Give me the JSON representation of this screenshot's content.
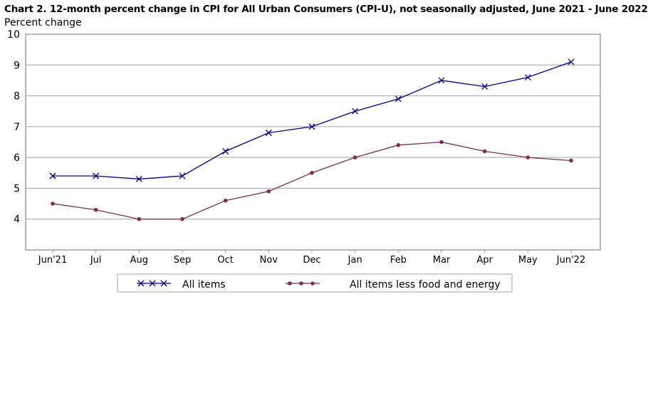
{
  "chart_data": {
    "type": "line",
    "title": "Chart 2. 12-month percent change in CPI for All Urban Consumers (CPI-U), not seasonally adjusted, June 2021 - June 2022",
    "ylabel": "Percent change",
    "xlabel": "",
    "categories": [
      "Jun'21",
      "Jul",
      "Aug",
      "Sep",
      "Oct",
      "Nov",
      "Dec",
      "Jan",
      "Feb",
      "Mar",
      "Apr",
      "May",
      "Jun'22"
    ],
    "ylim": [
      3,
      10
    ],
    "yticks": [
      4,
      5,
      6,
      7,
      8,
      9,
      10
    ],
    "grid": true,
    "legend_placement": "bottom",
    "series": [
      {
        "name": "All items",
        "marker": "x",
        "color": "#000080",
        "values": [
          5.4,
          5.4,
          5.3,
          5.4,
          6.2,
          6.8,
          7.0,
          7.5,
          7.9,
          8.5,
          8.3,
          8.6,
          9.1
        ]
      },
      {
        "name": "All items less food and energy",
        "marker": "circle",
        "color": "#7a2e52",
        "values": [
          4.5,
          4.3,
          4.0,
          4.0,
          4.6,
          4.9,
          5.5,
          6.0,
          6.4,
          6.5,
          6.2,
          6.0,
          5.9
        ]
      }
    ]
  }
}
